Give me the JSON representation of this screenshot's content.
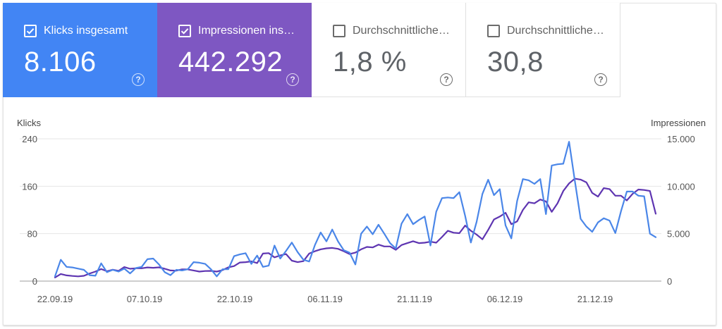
{
  "cards": [
    {
      "label": "Klicks insgesamt",
      "value": "8.106",
      "checked": true,
      "color": "#4285f4"
    },
    {
      "label": "Impressionen ins…",
      "value": "442.292",
      "checked": true,
      "color": "#7e57c2"
    },
    {
      "label": "Durchschnittliche…",
      "value": "1,8 %",
      "checked": false,
      "color": "#ffffff"
    },
    {
      "label": "Durchschnittliche…",
      "value": "30,8",
      "checked": false,
      "color": "#ffffff"
    }
  ],
  "help_glyph": "?",
  "chart_data": {
    "type": "line",
    "ylabel": "Klicks",
    "y2label": "Impressionen",
    "ylim": [
      0,
      240
    ],
    "y2lim": [
      0,
      15000
    ],
    "yticks": [
      "0",
      "80",
      "160",
      "240"
    ],
    "y2ticks": [
      "0",
      "5.000",
      "10.000",
      "15.000"
    ],
    "xticks": [
      "22.09.19",
      "07.10.19",
      "22.10.19",
      "06.11.19",
      "21.11.19",
      "06.12.19",
      "21.12.19"
    ],
    "series": [
      {
        "name": "Klicks",
        "axis": "left",
        "color": "#4a86e8",
        "values": [
          8,
          36,
          24,
          23,
          21,
          19,
          10,
          9,
          30,
          15,
          19,
          16,
          21,
          13,
          22,
          24,
          37,
          38,
          28,
          15,
          10,
          19,
          18,
          20,
          32,
          31,
          29,
          20,
          8,
          20,
          20,
          42,
          45,
          47,
          29,
          43,
          24,
          26,
          60,
          38,
          51,
          65,
          49,
          36,
          33,
          61,
          82,
          67,
          87,
          67,
          52,
          48,
          28,
          80,
          92,
          79,
          95,
          80,
          64,
          55,
          97,
          113,
          96,
          103,
          109,
          60,
          117,
          140,
          141,
          140,
          150,
          110,
          65,
          100,
          147,
          171,
          145,
          155,
          94,
          72,
          135,
          172,
          170,
          164,
          172,
          113,
          195,
          197,
          198,
          235,
          169,
          105,
          92,
          83,
          99,
          106,
          102,
          81,
          118,
          151,
          151,
          144,
          143,
          80,
          74
        ]
      },
      {
        "name": "Impressionen",
        "axis": "right",
        "color": "#5e35b1",
        "values": [
          380,
          750,
          600,
          540,
          500,
          560,
          800,
          1000,
          1270,
          1040,
          1200,
          1080,
          1480,
          1300,
          1350,
          1350,
          1440,
          1400,
          1450,
          1300,
          1120,
          1100,
          1240,
          1230,
          1120,
          1000,
          1060,
          1080,
          1000,
          1160,
          1450,
          1580,
          1960,
          2000,
          2080,
          1900,
          2900,
          2950,
          2500,
          2700,
          2850,
          2150,
          2000,
          2100,
          2900,
          3150,
          3350,
          3450,
          3500,
          3400,
          3150,
          2850,
          3000,
          3350,
          3600,
          3550,
          3850,
          3650,
          3650,
          3300,
          3800,
          4000,
          4200,
          4000,
          4050,
          4150,
          4050,
          4650,
          5300,
          5100,
          5050,
          5850,
          5300,
          4900,
          4400,
          5400,
          6500,
          6800,
          7200,
          6000,
          6300,
          7500,
          8300,
          8200,
          8600,
          8400,
          7300,
          8200,
          9500,
          10300,
          10800,
          10700,
          10400,
          9300,
          8900,
          9800,
          9700,
          9000,
          9000,
          8500,
          9200,
          9650,
          9600,
          9500,
          7100
        ]
      }
    ]
  }
}
